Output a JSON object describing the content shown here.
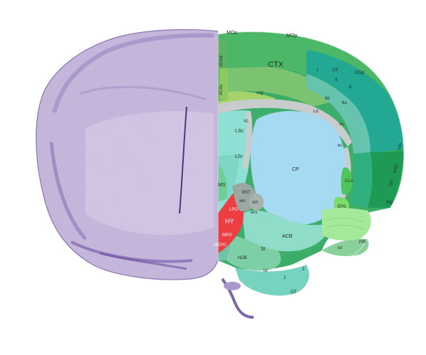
{
  "labels": {
    "MOs": "MOs",
    "MOp": "MOp",
    "SSp": "SSp",
    "CTX": "CTX",
    "ACAd": "ACAd",
    "ACAv": "ACAv",
    "ccg": "ccg",
    "LSc": "LSc",
    "LSr": "LSr",
    "CP": "CP",
    "MS": "MS",
    "BST": "BST",
    "HY": "HY",
    "ACB": "ACB",
    "SI": "SI",
    "NDB": "NDB",
    "OT": "OT",
    "CLA": "CLA",
    "EPd": "EPd",
    "PIR": "PIR",
    "AIp": "AIp",
    "GU": "GU",
    "VISC": "VISC",
    "SSs": "SSs",
    "VL": "VL",
    "LPO": "LPO",
    "MPO": "MPO",
    "MEPO": "MEPO",
    "lot": "lot",
    "isl": "isl",
    "sm": "sm",
    "am": "am",
    "acs": "acs",
    "ec": "ec",
    "os": "os",
    "Ld": "Ld",
    "n1": "1",
    "n23": "2/3",
    "n4": "4",
    "n5": "5",
    "n6a": "6a",
    "n6b": "6b",
    "n2": "2",
    "n3": "3"
  },
  "colors": {
    "cortex_dark": "#1f9a55",
    "cortex_mid": "#3cae6a",
    "cortex_light": "#80c46d",
    "ssp_teal": "#23a894",
    "striatum": "#a6d9f2",
    "pallidum": "#8fdcc8",
    "septum": "#8ee0d4",
    "hypothalamus": "#ee3d43",
    "fiber": "#c8cccc",
    "olfactory": "#8ad09a",
    "nissl": "#b7a6cf"
  },
  "icons": {
    "nissl_section": "nissl-hemisphere-icon"
  }
}
